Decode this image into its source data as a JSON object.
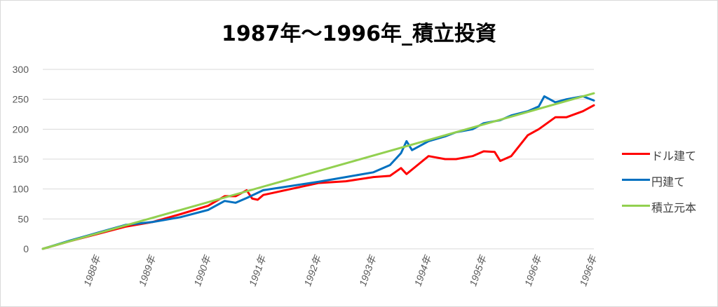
{
  "chart_data": {
    "type": "line",
    "title": "1987年～1996年_積立投資",
    "xlabel": "",
    "ylabel": "",
    "ylim": [
      0,
      300
    ],
    "yticks": [
      0,
      50,
      100,
      150,
      200,
      250,
      300
    ],
    "xlim": [
      1987.0,
      1997.0
    ],
    "xticks": [
      {
        "label": "1988年",
        "x": 1988.0
      },
      {
        "label": "1989年",
        "x": 1989.0
      },
      {
        "label": "1990年",
        "x": 1990.0
      },
      {
        "label": "1991年",
        "x": 1991.0
      },
      {
        "label": "1992年",
        "x": 1992.0
      },
      {
        "label": "1993年",
        "x": 1993.0
      },
      {
        "label": "1994年",
        "x": 1994.0
      },
      {
        "label": "1995年",
        "x": 1995.0
      },
      {
        "label": "1996年",
        "x": 1996.0
      },
      {
        "label": "1996年",
        "x": 1997.0
      }
    ],
    "grid": true,
    "legend_position": "right",
    "series": [
      {
        "name": "ドル建て",
        "color": "#ff0000",
        "x": [
          1987.0,
          1987.5,
          1988.0,
          1988.5,
          1989.0,
          1989.5,
          1990.0,
          1990.3,
          1990.5,
          1990.7,
          1990.8,
          1990.9,
          1991.0,
          1991.5,
          1992.0,
          1992.5,
          1993.0,
          1993.3,
          1993.5,
          1993.6,
          1993.8,
          1994.0,
          1994.3,
          1994.5,
          1994.8,
          1995.0,
          1995.2,
          1995.3,
          1995.5,
          1995.8,
          1996.0,
          1996.3,
          1996.5,
          1996.8,
          1997.0
        ],
        "y": [
          0,
          13,
          25,
          37,
          45,
          58,
          72,
          88,
          88,
          98,
          84,
          82,
          90,
          100,
          110,
          113,
          120,
          122,
          135,
          125,
          140,
          155,
          150,
          150,
          155,
          163,
          162,
          147,
          155,
          190,
          200,
          220,
          220,
          230,
          240
        ]
      },
      {
        "name": "円建て",
        "color": "#0070c0",
        "x": [
          1987.0,
          1987.5,
          1988.0,
          1988.5,
          1989.0,
          1989.5,
          1990.0,
          1990.3,
          1990.5,
          1990.7,
          1991.0,
          1991.5,
          1992.0,
          1992.5,
          1993.0,
          1993.3,
          1993.5,
          1993.6,
          1993.7,
          1994.0,
          1994.3,
          1994.5,
          1994.8,
          1995.0,
          1995.3,
          1995.5,
          1995.8,
          1996.0,
          1996.1,
          1996.3,
          1996.5,
          1996.8,
          1997.0
        ],
        "y": [
          0,
          14,
          27,
          40,
          45,
          53,
          65,
          80,
          77,
          85,
          98,
          105,
          112,
          120,
          128,
          140,
          160,
          180,
          165,
          180,
          188,
          195,
          200,
          210,
          215,
          223,
          230,
          238,
          255,
          245,
          250,
          255,
          248
        ]
      },
      {
        "name": "積立元本",
        "color": "#92d050",
        "x": [
          1987.0,
          1997.0
        ],
        "y": [
          0,
          260
        ]
      }
    ]
  }
}
